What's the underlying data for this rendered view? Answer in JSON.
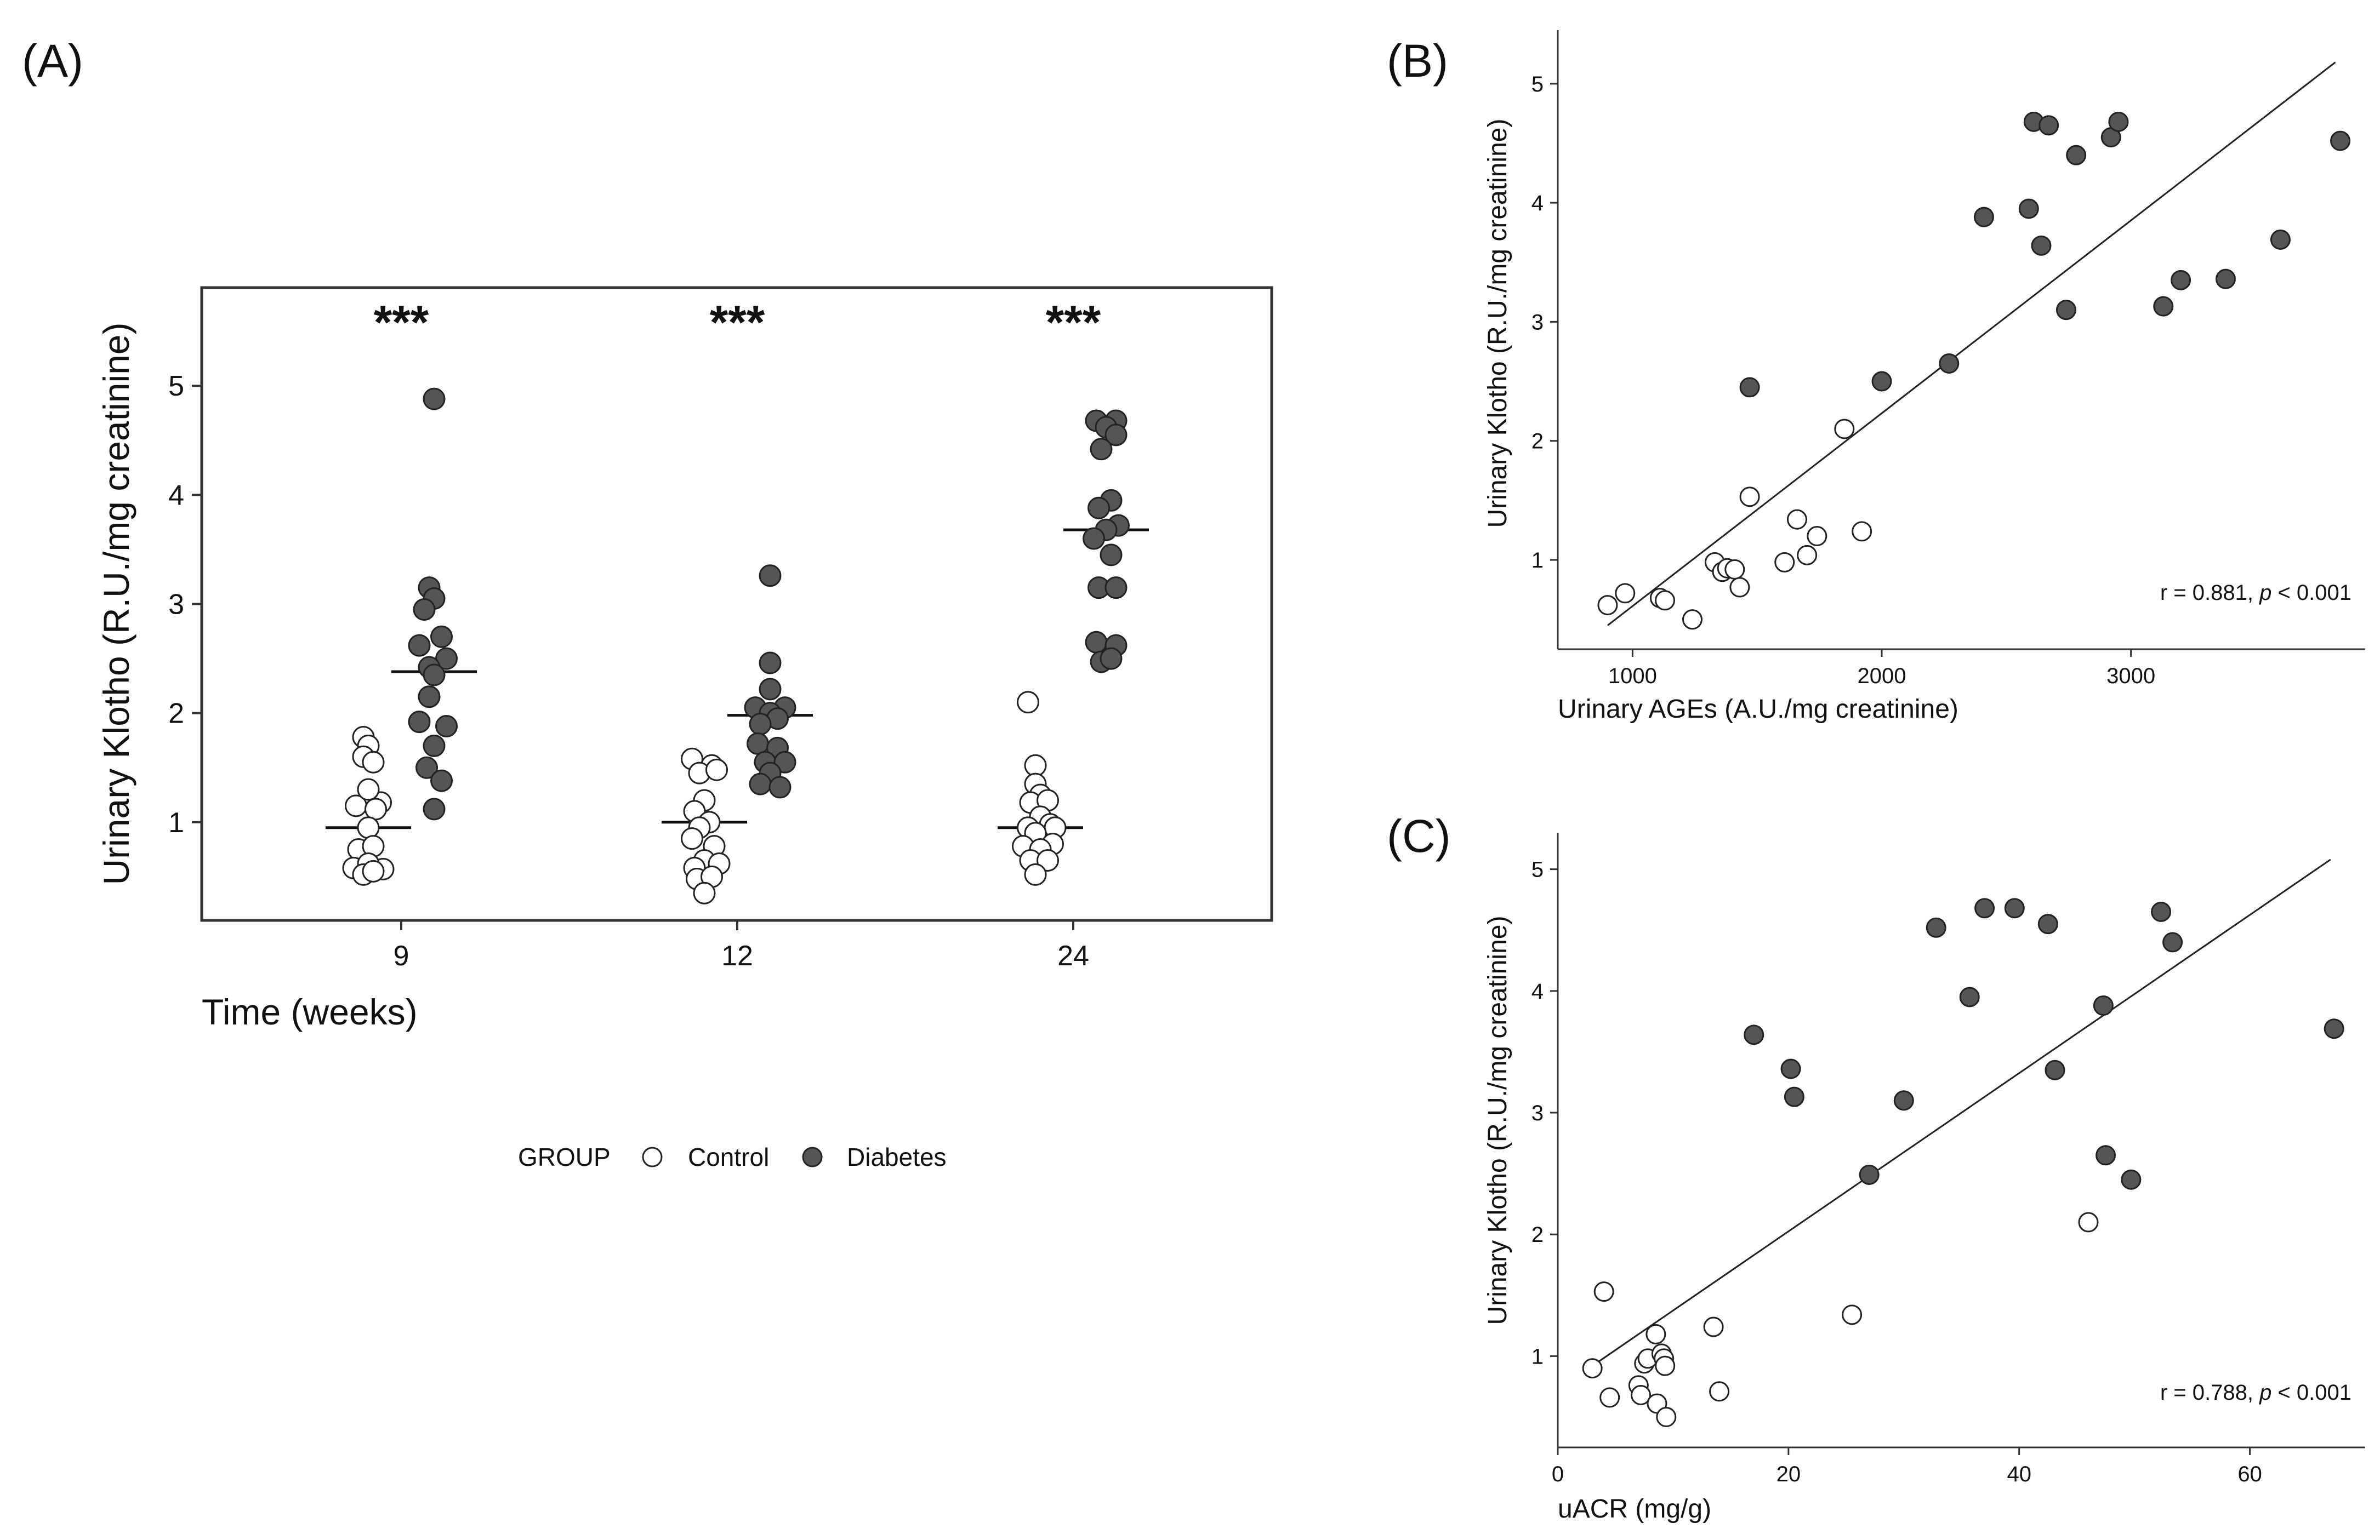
{
  "panels": {
    "A": {
      "label": "(A)",
      "xlabel": "Time (weeks)",
      "ylabel": "Urinary Klotho (R.U./mg creatinine)",
      "significance": "***"
    },
    "B": {
      "label": "(B)",
      "xlabel": "Urinary AGEs (A.U./mg creatinine)",
      "ylabel": "Urinary Klotho (R.U./mg creatinine)",
      "stat_prefix": "r = 0.881, ",
      "stat_p": "p",
      "stat_suffix": " < 0.001"
    },
    "C": {
      "label": "(C)",
      "xlabel": "uACR (mg/g)",
      "ylabel": "Urinary Klotho (R.U./mg creatinine)",
      "stat_prefix": "r = 0.788, ",
      "stat_p": "p",
      "stat_suffix": " < 0.001"
    }
  },
  "legend": {
    "title": "GROUP",
    "items": [
      {
        "label": "Control",
        "color": "#ffffff"
      },
      {
        "label": "Diabetes",
        "color": "#555555"
      }
    ]
  },
  "chart_data": [
    {
      "id": "A",
      "type": "scatter",
      "categories": [
        "9",
        "12",
        "24"
      ],
      "ylim": [
        0.1,
        5.9
      ],
      "yticks": [
        1,
        2,
        3,
        4,
        5
      ],
      "series": [
        {
          "name": "Control",
          "color": "#ffffff",
          "points": [
            [
              [
                -0.02,
                1.78
              ],
              [
                0.0,
                1.7
              ],
              [
                -0.02,
                1.6
              ],
              [
                0.02,
                1.55
              ],
              [
                0.05,
                1.18
              ],
              [
                -0.05,
                1.15
              ],
              [
                0.0,
                1.3
              ],
              [
                0.03,
                1.12
              ],
              [
                0.0,
                0.95
              ],
              [
                -0.04,
                0.75
              ],
              [
                0.02,
                0.78
              ],
              [
                -0.06,
                0.58
              ],
              [
                0.06,
                0.57
              ],
              [
                0.0,
                0.62
              ],
              [
                -0.02,
                0.52
              ],
              [
                0.02,
                0.55
              ]
            ],
            [
              [
                -0.05,
                1.58
              ],
              [
                0.03,
                1.52
              ],
              [
                -0.02,
                1.45
              ],
              [
                0.05,
                1.48
              ],
              [
                0.0,
                1.2
              ],
              [
                -0.04,
                1.1
              ],
              [
                0.02,
                1.0
              ],
              [
                -0.02,
                0.95
              ],
              [
                -0.05,
                0.85
              ],
              [
                0.04,
                0.78
              ],
              [
                0.0,
                0.65
              ],
              [
                -0.04,
                0.58
              ],
              [
                0.06,
                0.62
              ],
              [
                -0.03,
                0.48
              ],
              [
                0.03,
                0.5
              ],
              [
                0.0,
                0.35
              ]
            ],
            [
              [
                -0.05,
                2.1
              ],
              [
                -0.02,
                1.52
              ],
              [
                -0.02,
                1.35
              ],
              [
                0.0,
                1.25
              ],
              [
                -0.04,
                1.18
              ],
              [
                0.03,
                1.2
              ],
              [
                0.0,
                1.05
              ],
              [
                0.04,
                0.98
              ],
              [
                -0.05,
                0.95
              ],
              [
                0.06,
                0.95
              ],
              [
                -0.02,
                0.9
              ],
              [
                -0.07,
                0.78
              ],
              [
                0.05,
                0.8
              ],
              [
                0.0,
                0.75
              ],
              [
                -0.04,
                0.65
              ],
              [
                0.03,
                0.65
              ],
              [
                -0.02,
                0.52
              ]
            ]
          ]
        },
        {
          "name": "Diabetes",
          "color": "#555555",
          "points": [
            [
              [
                0.0,
                4.88
              ],
              [
                -0.02,
                3.15
              ],
              [
                0.0,
                3.05
              ],
              [
                -0.04,
                2.95
              ],
              [
                0.03,
                2.7
              ],
              [
                -0.06,
                2.62
              ],
              [
                0.05,
                2.5
              ],
              [
                -0.02,
                2.42
              ],
              [
                0.0,
                2.35
              ],
              [
                -0.02,
                2.15
              ],
              [
                -0.06,
                1.92
              ],
              [
                0.05,
                1.88
              ],
              [
                0.0,
                1.7
              ],
              [
                -0.03,
                1.5
              ],
              [
                0.03,
                1.38
              ],
              [
                0.0,
                1.12
              ]
            ],
            [
              [
                0.0,
                3.26
              ],
              [
                0.0,
                2.46
              ],
              [
                0.0,
                2.22
              ],
              [
                -0.06,
                2.05
              ],
              [
                0.06,
                2.05
              ],
              [
                0.0,
                2.0
              ],
              [
                0.03,
                1.95
              ],
              [
                -0.04,
                1.9
              ],
              [
                -0.05,
                1.72
              ],
              [
                0.03,
                1.68
              ],
              [
                -0.02,
                1.55
              ],
              [
                0.06,
                1.55
              ],
              [
                0.0,
                1.45
              ],
              [
                -0.04,
                1.35
              ],
              [
                0.04,
                1.32
              ]
            ],
            [
              [
                -0.04,
                4.68
              ],
              [
                0.04,
                4.68
              ],
              [
                0.0,
                4.62
              ],
              [
                0.04,
                4.55
              ],
              [
                -0.02,
                4.42
              ],
              [
                0.02,
                3.95
              ],
              [
                -0.03,
                3.88
              ],
              [
                0.05,
                3.72
              ],
              [
                0.0,
                3.68
              ],
              [
                -0.05,
                3.6
              ],
              [
                0.02,
                3.45
              ],
              [
                -0.03,
                3.15
              ],
              [
                0.04,
                3.15
              ],
              [
                -0.04,
                2.65
              ],
              [
                0.04,
                2.62
              ],
              [
                -0.02,
                2.47
              ],
              [
                0.02,
                2.5
              ]
            ]
          ]
        }
      ],
      "medians": {
        "Control": [
          0.95,
          1.0,
          0.95
        ],
        "Diabetes": [
          2.38,
          1.98,
          3.68
        ]
      }
    },
    {
      "id": "B",
      "type": "scatter",
      "xlim": [
        700,
        3940
      ],
      "ylim": [
        0.25,
        5.45
      ],
      "xticks": [
        1000,
        2000,
        3000
      ],
      "yticks": [
        1,
        2,
        3,
        4,
        5
      ],
      "series": [
        {
          "name": "Control",
          "color": "#ffffff",
          "points": [
            [
              900,
              0.62
            ],
            [
              970,
              0.72
            ],
            [
              1110,
              0.68
            ],
            [
              1130,
              0.66
            ],
            [
              1240,
              0.5
            ],
            [
              1330,
              0.98
            ],
            [
              1360,
              0.9
            ],
            [
              1380,
              0.93
            ],
            [
              1410,
              0.92
            ],
            [
              1430,
              0.77
            ],
            [
              1470,
              1.53
            ],
            [
              1610,
              0.98
            ],
            [
              1660,
              1.34
            ],
            [
              1700,
              1.04
            ],
            [
              1740,
              1.2
            ],
            [
              1850,
              2.1
            ],
            [
              1920,
              1.24
            ]
          ]
        },
        {
          "name": "Diabetes",
          "color": "#555555",
          "points": [
            [
              1470,
              2.45
            ],
            [
              2000,
              2.5
            ],
            [
              2270,
              2.65
            ],
            [
              2410,
              3.88
            ],
            [
              2590,
              3.95
            ],
            [
              2610,
              4.68
            ],
            [
              2640,
              3.64
            ],
            [
              2670,
              4.65
            ],
            [
              2740,
              3.1
            ],
            [
              2780,
              4.4
            ],
            [
              2920,
              4.55
            ],
            [
              2950,
              4.68
            ],
            [
              3130,
              3.13
            ],
            [
              3200,
              3.35
            ],
            [
              3380,
              3.36
            ],
            [
              3600,
              3.69
            ],
            [
              3840,
              4.52
            ]
          ]
        }
      ],
      "fit_line": [
        [
          900,
          0.45
        ],
        [
          3820,
          5.18
        ]
      ]
    },
    {
      "id": "C",
      "type": "scatter",
      "xlim": [
        0,
        70
      ],
      "ylim": [
        0.25,
        5.3
      ],
      "xticks": [
        0,
        20,
        40,
        60
      ],
      "yticks": [
        1,
        2,
        3,
        4,
        5
      ],
      "series": [
        {
          "name": "Control",
          "color": "#ffffff",
          "points": [
            [
              3.0,
              0.9
            ],
            [
              4.0,
              1.53
            ],
            [
              4.5,
              0.66
            ],
            [
              7.0,
              0.76
            ],
            [
              7.2,
              0.68
            ],
            [
              7.5,
              0.94
            ],
            [
              7.8,
              0.98
            ],
            [
              8.5,
              1.18
            ],
            [
              8.6,
              0.61
            ],
            [
              9.0,
              1.02
            ],
            [
              9.2,
              0.98
            ],
            [
              9.3,
              0.92
            ],
            [
              9.4,
              0.5
            ],
            [
              13.5,
              1.24
            ],
            [
              14.0,
              0.71
            ],
            [
              25.5,
              1.34
            ],
            [
              46.0,
              2.1
            ]
          ]
        },
        {
          "name": "Diabetes",
          "color": "#555555",
          "points": [
            [
              17.0,
              3.64
            ],
            [
              20.2,
              3.36
            ],
            [
              20.5,
              3.13
            ],
            [
              27.0,
              2.49
            ],
            [
              30.0,
              3.1
            ],
            [
              32.8,
              4.52
            ],
            [
              35.7,
              3.95
            ],
            [
              37.0,
              4.68
            ],
            [
              39.6,
              4.68
            ],
            [
              42.5,
              4.55
            ],
            [
              43.1,
              3.35
            ],
            [
              47.3,
              3.88
            ],
            [
              47.5,
              2.65
            ],
            [
              49.7,
              2.45
            ],
            [
              52.3,
              4.65
            ],
            [
              53.3,
              4.4
            ],
            [
              67.3,
              3.69
            ]
          ]
        }
      ],
      "fit_line": [
        [
          3.0,
          0.92
        ],
        [
          67.0,
          5.08
        ]
      ]
    }
  ]
}
